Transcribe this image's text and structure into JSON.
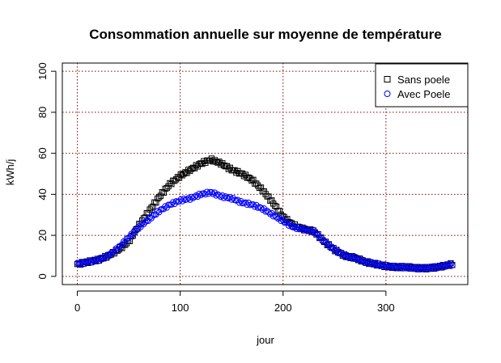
{
  "chart_data": {
    "type": "scatter",
    "title": "Consommation annuelle sur moyenne de température",
    "xlabel": "jour",
    "ylabel": "kWh/j",
    "xlim": [
      0,
      365
    ],
    "ylim": [
      0,
      100
    ],
    "xticks": [
      0,
      100,
      200,
      300
    ],
    "yticks": [
      0,
      20,
      40,
      60,
      80,
      100
    ],
    "grid": true,
    "grid_color": "#8b0000",
    "legend_position": "top-right",
    "series": [
      {
        "name": "Sans poele",
        "marker": "square",
        "color": "#000000",
        "x": [
          0,
          10,
          20,
          30,
          40,
          50,
          60,
          70,
          80,
          90,
          100,
          110,
          120,
          130,
          140,
          150,
          160,
          170,
          180,
          190,
          200,
          210,
          220,
          230,
          240,
          250,
          260,
          270,
          280,
          290,
          300,
          310,
          320,
          330,
          340,
          350,
          360,
          365
        ],
        "y": [
          6,
          7,
          8,
          10,
          13,
          17,
          25,
          32,
          39,
          45,
          49,
          52,
          55,
          57,
          55,
          52,
          50,
          47,
          42,
          36,
          29,
          25,
          23,
          22,
          17,
          13,
          10,
          9,
          7,
          6,
          5,
          4.5,
          4.5,
          4,
          4,
          4.5,
          5.5,
          6
        ]
      },
      {
        "name": "Avec Poele",
        "marker": "circle",
        "color": "#0000ff",
        "x": [
          0,
          10,
          20,
          30,
          40,
          50,
          60,
          70,
          80,
          90,
          100,
          110,
          120,
          130,
          140,
          150,
          160,
          170,
          180,
          190,
          200,
          210,
          220,
          230,
          240,
          250,
          260,
          270,
          280,
          290,
          300,
          310,
          320,
          330,
          340,
          350,
          360,
          365
        ],
        "y": [
          6,
          7,
          8,
          10,
          14,
          19,
          24,
          28,
          32,
          35,
          37,
          38,
          40,
          41,
          39,
          38,
          36,
          35,
          33,
          30,
          27,
          24,
          23,
          22,
          17,
          13,
          10,
          9,
          7,
          6,
          5,
          4.5,
          4.5,
          4,
          4,
          4.5,
          5.5,
          6
        ]
      }
    ]
  }
}
